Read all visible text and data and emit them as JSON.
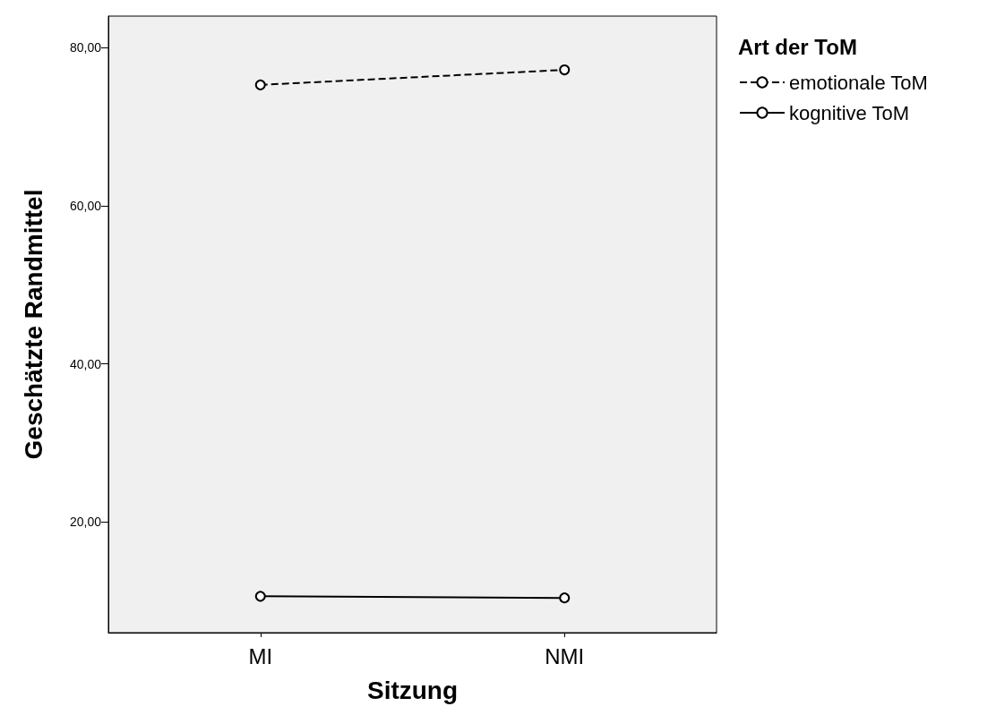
{
  "chart_data": {
    "type": "line",
    "xlabel": "Sitzung",
    "ylabel": "Geschätzte Randmittel",
    "legend_title": "Art der ToM",
    "categories": [
      "MI",
      "NMI"
    ],
    "series": [
      {
        "name": "emotionale ToM",
        "color": "#000000",
        "line_style": "dashed",
        "values": [
          75.3,
          77.2
        ]
      },
      {
        "name": "kognitive ToM",
        "color": "#000000",
        "line_style": "solid",
        "values": [
          10.6,
          10.4
        ]
      }
    ],
    "ylim": [
      6,
      84
    ],
    "yticks": [
      {
        "value": 20,
        "label": "20,00"
      },
      {
        "value": 40,
        "label": "40,00"
      },
      {
        "value": 60,
        "label": "60,00"
      },
      {
        "value": 80,
        "label": "80,00"
      }
    ],
    "grid": false,
    "legend": "top right",
    "marker": "circle"
  }
}
